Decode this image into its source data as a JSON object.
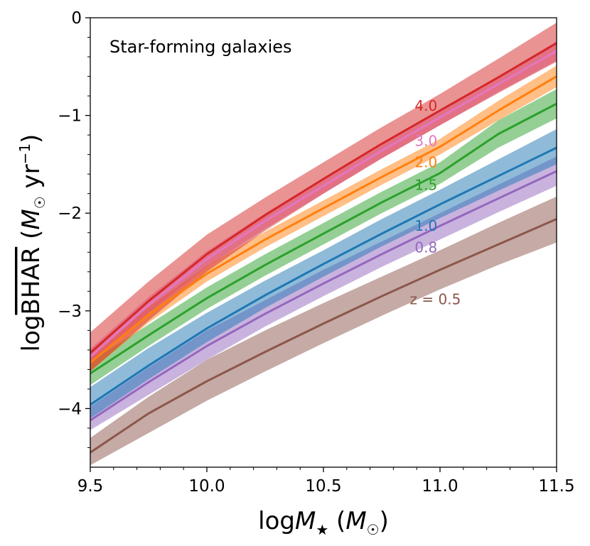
{
  "chart_data": {
    "type": "line",
    "title": "",
    "annotation": "Star-forming galaxies",
    "xlabel": "logM★ (M☉)",
    "ylabel": "log BHAR (M☉ yr⁻¹)",
    "xlabel_parts": {
      "prefix": "log",
      "var": "M",
      "sub": "★",
      "unit_open": " (",
      "unit_var": "M",
      "unit_sub": "☉",
      "unit_close": ")"
    },
    "ylabel_parts": {
      "prefix": "log",
      "over": "BHAR",
      "unit_open": " (",
      "unit_var": "M",
      "unit_sub": "☉",
      "unit_mid": " yr",
      "unit_sup": "−1",
      "unit_close": ")"
    },
    "xlim": [
      9.5,
      11.5
    ],
    "ylim": [
      -4.6,
      0
    ],
    "xticks": [
      9.5,
      10.0,
      10.5,
      11.0,
      11.5
    ],
    "xtick_labels": [
      "9.5",
      "10.0",
      "10.5",
      "11.0",
      "11.5"
    ],
    "yticks": [
      -4,
      -3,
      -2,
      -1,
      0
    ],
    "ytick_labels": [
      "−4",
      "−3",
      "−2",
      "−1",
      "0"
    ],
    "legend_location": "inline labels near right end of each line",
    "x": [
      9.5,
      9.75,
      10.0,
      10.25,
      10.5,
      10.75,
      11.0,
      11.25,
      11.5
    ],
    "series": [
      {
        "name": "z = 0.5",
        "label": "z = 0.5",
        "color": "#8c564b",
        "values": [
          -4.45,
          -4.05,
          -3.72,
          -3.42,
          -3.13,
          -2.85,
          -2.58,
          -2.32,
          -2.06
        ],
        "band_low": [
          -4.58,
          -4.25,
          -3.92,
          -3.62,
          -3.33,
          -3.05,
          -2.78,
          -2.53,
          -2.3
        ],
        "band_high": [
          -4.3,
          -3.88,
          -3.5,
          -3.2,
          -2.92,
          -2.65,
          -2.38,
          -2.1,
          -1.83
        ],
        "label_at": [
          10.98,
          -2.88
        ]
      },
      {
        "name": "0.8",
        "label": "0.8",
        "color": "#9467bd",
        "values": [
          -4.12,
          -3.73,
          -3.36,
          -3.03,
          -2.72,
          -2.42,
          -2.13,
          -1.85,
          -1.57
        ],
        "band_low": [
          -4.22,
          -3.86,
          -3.5,
          -3.16,
          -2.85,
          -2.55,
          -2.27,
          -1.99,
          -1.72
        ],
        "band_high": [
          -3.98,
          -3.58,
          -3.2,
          -2.89,
          -2.58,
          -2.29,
          -2.0,
          -1.71,
          -1.42
        ],
        "label_at": [
          10.94,
          -2.35
        ]
      },
      {
        "name": "1.0",
        "label": "1.0",
        "color": "#1f77b4",
        "values": [
          -3.96,
          -3.56,
          -3.18,
          -2.84,
          -2.52,
          -2.21,
          -1.91,
          -1.62,
          -1.33
        ],
        "band_low": [
          -4.1,
          -3.7,
          -3.32,
          -2.97,
          -2.65,
          -2.34,
          -2.05,
          -1.77,
          -1.5
        ],
        "band_high": [
          -3.78,
          -3.38,
          -3.02,
          -2.69,
          -2.38,
          -2.06,
          -1.76,
          -1.45,
          -1.14
        ],
        "label_at": [
          10.94,
          -2.13
        ]
      },
      {
        "name": "1.5",
        "label": "1.5",
        "color": "#2ca02c",
        "values": [
          -3.64,
          -3.25,
          -2.87,
          -2.53,
          -2.21,
          -1.89,
          -1.59,
          -1.19,
          -0.88
        ],
        "band_low": [
          -3.76,
          -3.36,
          -2.98,
          -2.64,
          -2.32,
          -2.0,
          -1.7,
          -1.33,
          -1.03
        ],
        "band_high": [
          -3.52,
          -3.14,
          -2.76,
          -2.42,
          -2.1,
          -1.78,
          -1.48,
          -1.05,
          -0.73
        ],
        "label_at": [
          10.94,
          -1.71
        ]
      },
      {
        "name": "2.0",
        "label": "2.0",
        "color": "#ff7f0e",
        "values": [
          -3.53,
          -3.04,
          -2.62,
          -2.27,
          -1.95,
          -1.63,
          -1.32,
          -0.95,
          -0.6
        ],
        "band_low": [
          -3.62,
          -3.12,
          -2.7,
          -2.35,
          -2.03,
          -1.71,
          -1.4,
          -1.05,
          -0.71
        ],
        "band_high": [
          -3.44,
          -2.96,
          -2.54,
          -2.19,
          -1.87,
          -1.55,
          -1.24,
          -0.85,
          -0.49
        ],
        "label_at": [
          10.94,
          -1.48
        ]
      },
      {
        "name": "3.0",
        "label": "3.0",
        "color": "#e377c2",
        "values": [
          -3.47,
          -2.94,
          -2.47,
          -2.08,
          -1.72,
          -1.36,
          -1.02,
          -0.68,
          -0.34
        ],
        "band_low": [
          -3.55,
          -3.02,
          -2.55,
          -2.16,
          -1.8,
          -1.44,
          -1.1,
          -0.76,
          -0.44
        ],
        "band_high": [
          -3.39,
          -2.86,
          -2.39,
          -2.0,
          -1.64,
          -1.28,
          -0.94,
          -0.6,
          -0.24
        ],
        "label_at": [
          10.94,
          -1.26
        ]
      },
      {
        "name": "4.0",
        "label": "4.0",
        "color": "#d62728",
        "values": [
          -3.43,
          -2.9,
          -2.42,
          -2.02,
          -1.65,
          -1.29,
          -0.95,
          -0.61,
          -0.26
        ],
        "band_low": [
          -3.62,
          -3.1,
          -2.6,
          -2.18,
          -1.8,
          -1.44,
          -1.1,
          -0.77,
          -0.45
        ],
        "band_high": [
          -3.22,
          -2.7,
          -2.22,
          -1.84,
          -1.48,
          -1.12,
          -0.78,
          -0.42,
          -0.05
        ],
        "label_at": [
          10.94,
          -0.9
        ]
      }
    ]
  }
}
